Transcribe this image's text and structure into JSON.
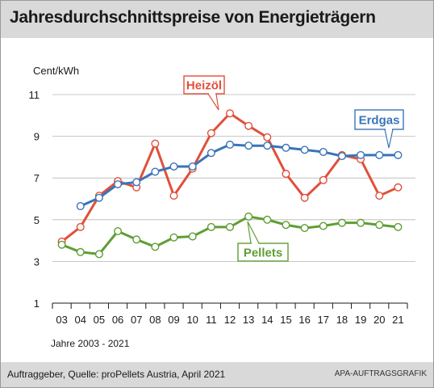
{
  "title": "Jahresdurchschnittspreise von Energieträgern",
  "footer": {
    "source": "Auftraggeber, Quelle: proPellets Austria, April 2021",
    "credit": "APA-AUFTRAGSGRAFIK"
  },
  "chart_data": {
    "type": "line",
    "ylabel": "Cent/kWh",
    "xlabel": "Jahre 2003 - 2021",
    "categories": [
      "03",
      "04",
      "05",
      "06",
      "07",
      "08",
      "09",
      "10",
      "11",
      "12",
      "13",
      "14",
      "15",
      "16",
      "17",
      "18",
      "19",
      "20",
      "21"
    ],
    "ylim": [
      1,
      11
    ],
    "yticks": [
      1,
      3,
      5,
      7,
      9,
      11
    ],
    "grid": true,
    "series": [
      {
        "name": "Heizöl",
        "color": "#e0503a",
        "values": [
          3.95,
          4.65,
          6.15,
          6.85,
          6.55,
          8.65,
          6.15,
          7.45,
          9.15,
          10.1,
          9.5,
          8.95,
          7.2,
          6.05,
          6.9,
          8.1,
          7.9,
          6.15,
          6.55
        ]
      },
      {
        "name": "Erdgas",
        "color": "#3a74b8",
        "values": [
          null,
          5.65,
          6.05,
          6.7,
          6.8,
          7.3,
          7.55,
          7.55,
          8.2,
          8.6,
          8.55,
          8.55,
          8.45,
          8.35,
          8.25,
          8.05,
          8.1,
          8.1,
          8.1
        ]
      },
      {
        "name": "Pellets",
        "color": "#5e9e34",
        "values": [
          3.8,
          3.45,
          3.35,
          4.45,
          4.05,
          3.7,
          4.15,
          4.2,
          4.65,
          4.65,
          5.15,
          5.0,
          4.75,
          4.6,
          4.7,
          4.85,
          4.85,
          4.75,
          4.65
        ]
      }
    ]
  }
}
